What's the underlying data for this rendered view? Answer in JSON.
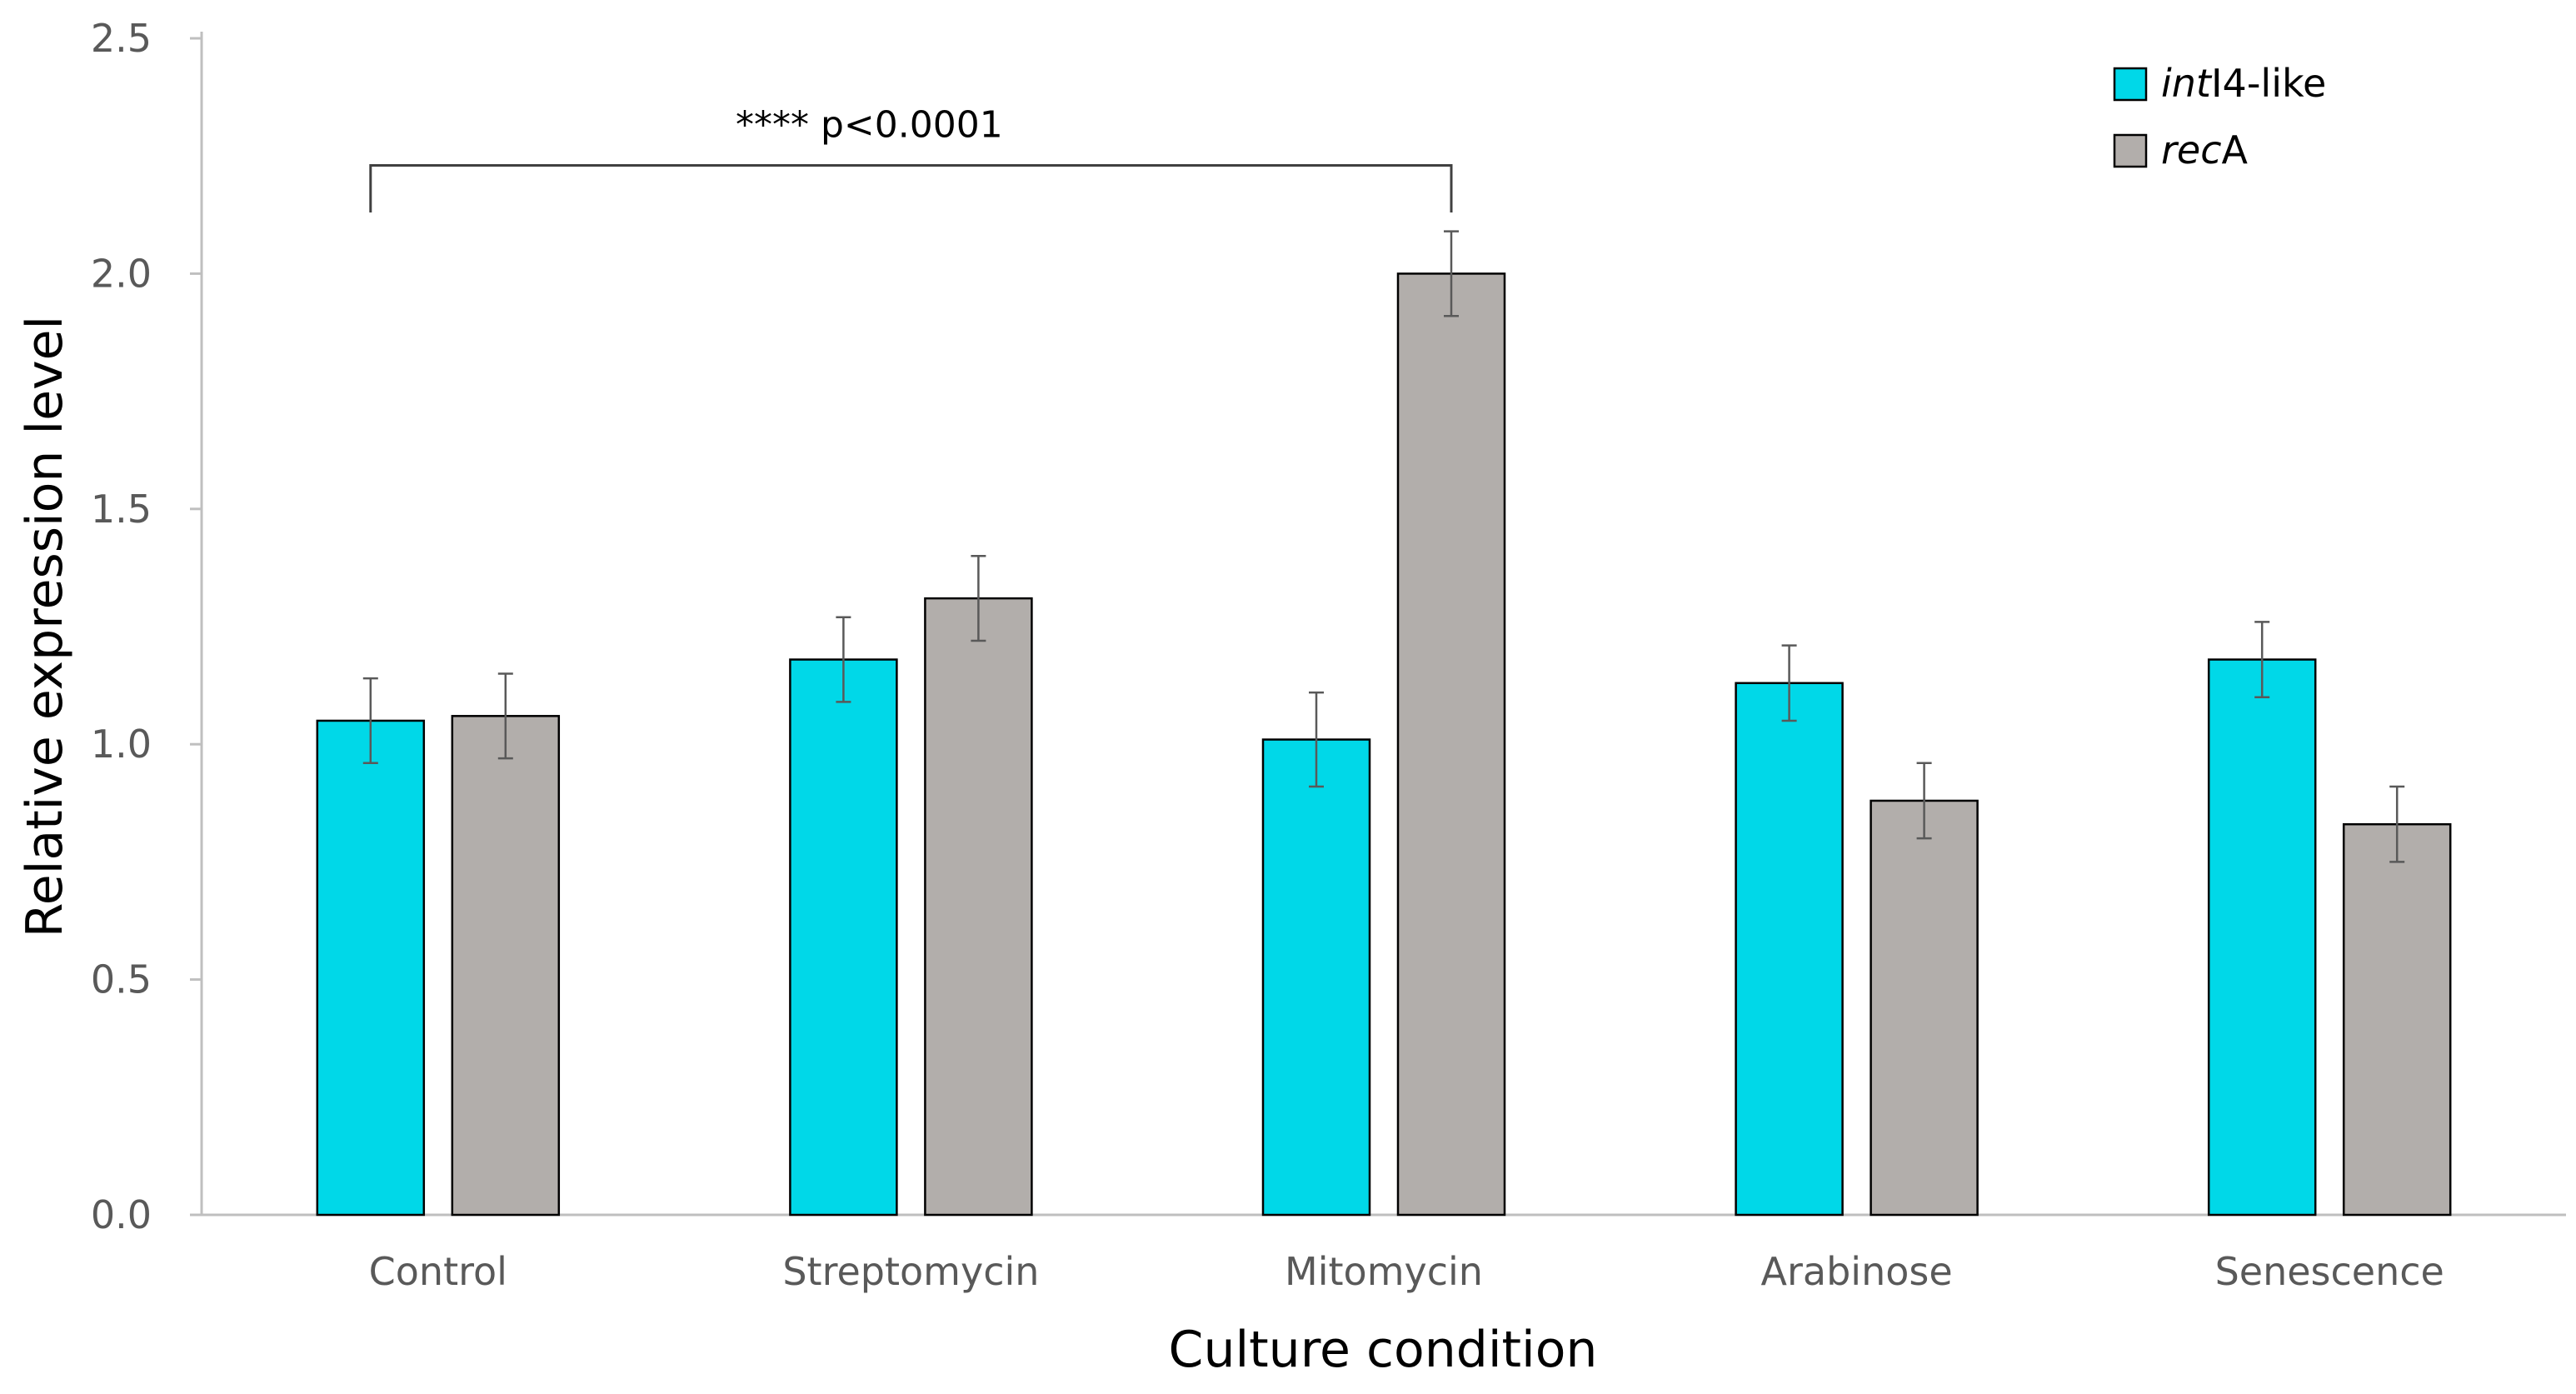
{
  "chart_data": {
    "type": "bar",
    "title": "",
    "xlabel": "Culture condition",
    "ylabel": "Relative expression level",
    "ylim": [
      0,
      2.5
    ],
    "yticks": [
      "0.0",
      "0.5",
      "1.0",
      "1.5",
      "2.0",
      "2.5"
    ],
    "ytick_values": [
      0,
      0.5,
      1.0,
      1.5,
      2.0,
      2.5
    ],
    "grid": false,
    "legend_position": "top-right",
    "categories": [
      "Control",
      "Streptomycin",
      "Mitomycin",
      "Arabinose",
      "Senescence"
    ],
    "series": [
      {
        "name_italic": "int",
        "name_rest": "I4-like",
        "color": "#00D8E8",
        "values": [
          1.05,
          1.18,
          1.01,
          1.13,
          1.18
        ],
        "errors": [
          0.09,
          0.09,
          0.1,
          0.08,
          0.08
        ]
      },
      {
        "name_italic": "rec",
        "name_rest": "A",
        "color": "#B2AEAB",
        "values": [
          1.06,
          1.31,
          2.0,
          0.88,
          0.83
        ],
        "errors": [
          0.09,
          0.09,
          0.09,
          0.08,
          0.08
        ]
      }
    ],
    "annotation": {
      "text": "**** p<0.0001",
      "from_category": "Control",
      "from_series": 0,
      "to_category": "Mitomycin",
      "to_series": 1,
      "level": 2.23,
      "drop": 0.1
    }
  },
  "colors": {
    "axis": "#BFBFBF",
    "bar_outline": "#000000",
    "error_bar": "#595959",
    "bracket": "#404040"
  }
}
